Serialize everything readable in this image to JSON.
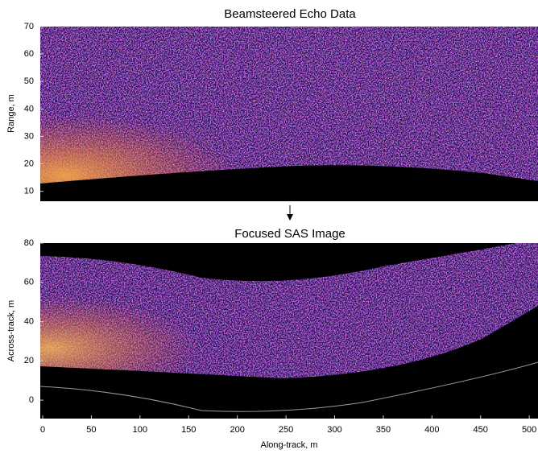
{
  "chart_data": [
    {
      "type": "image",
      "title": "Beamsteered Echo Data",
      "y_label": "Range, m",
      "ylim": [
        6.4,
        70
      ],
      "yticks": [
        10,
        20,
        30,
        40,
        50,
        60,
        70
      ]
    },
    {
      "type": "image",
      "title": "Focused SAS Image",
      "x_label": "Along-track, m",
      "y_label": "Across-track, m",
      "xlim": [
        -2.5,
        509
      ],
      "xticks": [
        0,
        50,
        100,
        150,
        200,
        250,
        300,
        350,
        400,
        450,
        500
      ],
      "ylim": [
        -9.4,
        80
      ],
      "yticks": [
        0,
        20,
        40,
        60,
        80
      ]
    }
  ]
}
